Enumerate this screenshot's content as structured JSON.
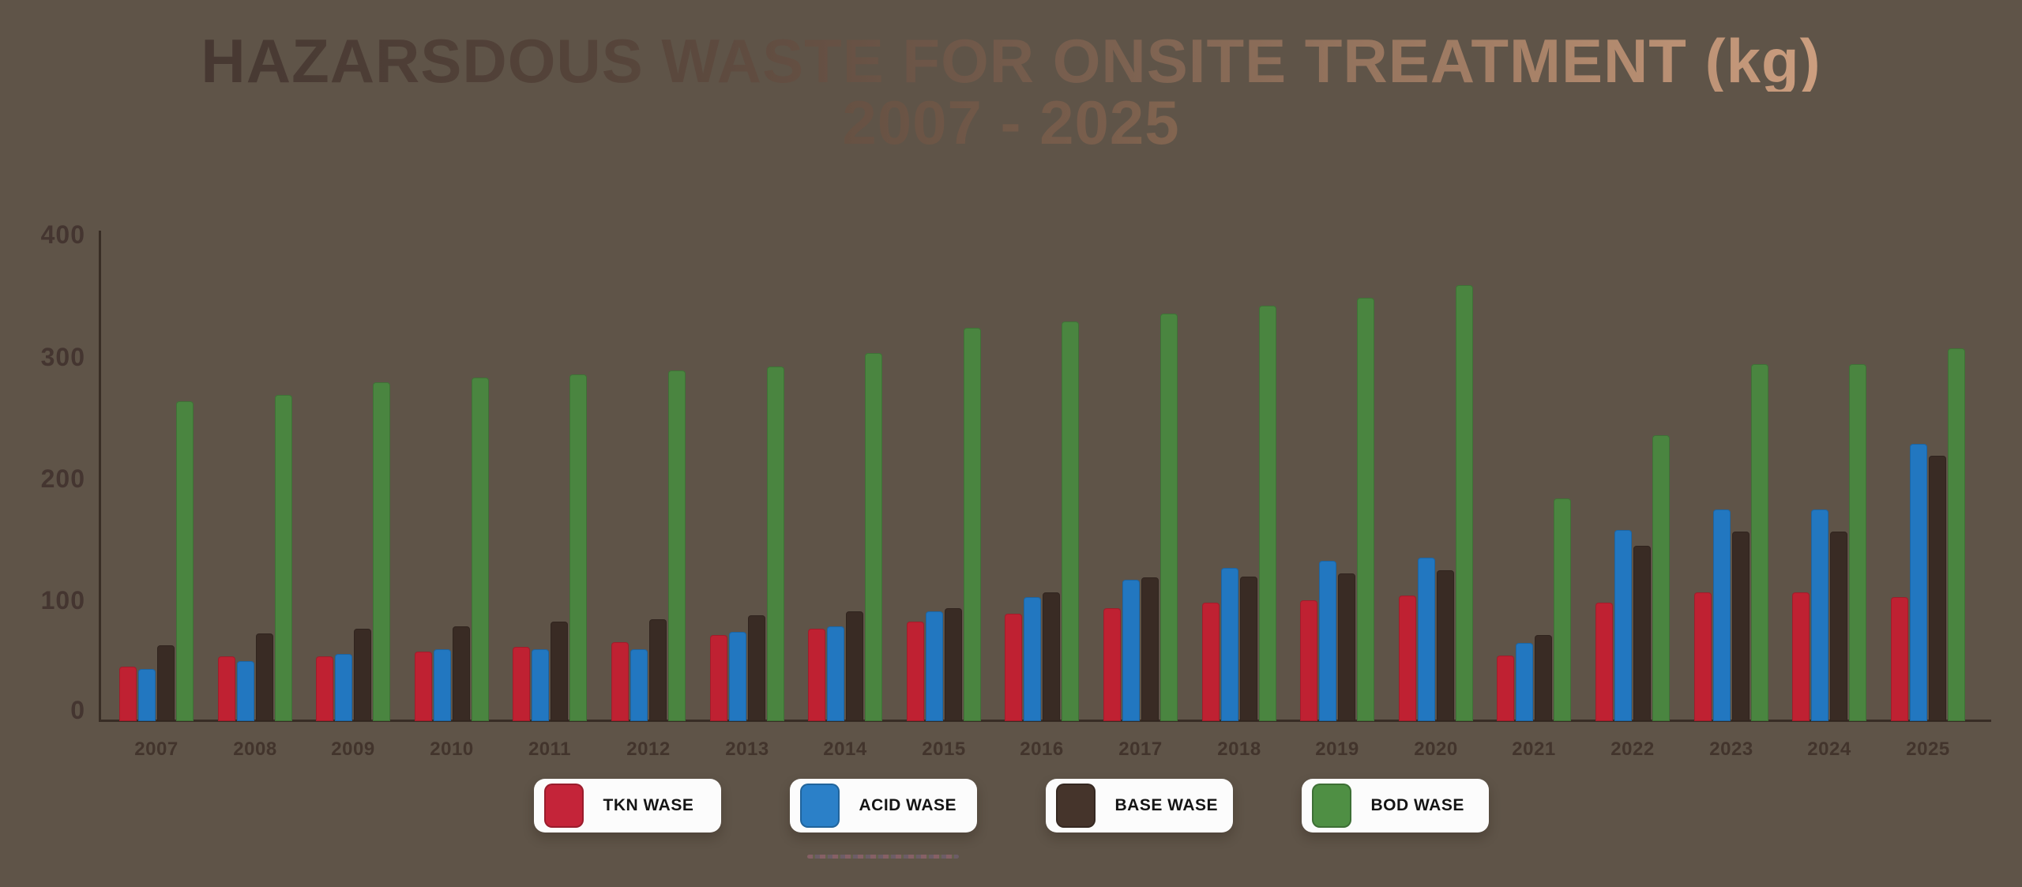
{
  "title": {
    "line1": "HAZARSDOUS WASTE FOR ONSITE TREATMENT (kg)",
    "line2": "2007 - 2025"
  },
  "y_axis": {
    "tick_labels": [
      "0",
      "100",
      "200",
      "300",
      "400"
    ]
  },
  "legend": {
    "items": [
      {
        "label": "TKN WASE",
        "swatch_color": "#c42439",
        "icon": "red-square-swatch"
      },
      {
        "label": "ACID WASE",
        "swatch_color": "#2b80c8",
        "icon": "blue-square-swatch"
      },
      {
        "label": "BASE WASE",
        "swatch_color": "#45342b",
        "icon": "dark-square-swatch"
      },
      {
        "label": "BOD WASE",
        "swatch_color": "#4f8f44",
        "icon": "green-square-swatch"
      }
    ]
  },
  "colors": {
    "background": "#5f5448",
    "axis": "#382d25",
    "axis_text": "#443530",
    "year_text": "#42342c",
    "tkn_bar": "#bf2132",
    "acid_bar": "#2277c0",
    "base_bar": "#392b24",
    "bod_bar": "#4a8540"
  },
  "chart_data": {
    "type": "bar",
    "title": "HAZARSDOUS WASTE FOR ONSITE TREATMENT (kg) 2007 - 2025",
    "xlabel": "",
    "ylabel": "",
    "ylim": [
      0,
      400
    ],
    "y_ticks": [
      0,
      100,
      200,
      300,
      400
    ],
    "grid": false,
    "legend_position": "bottom",
    "categories": [
      "2007",
      "2008",
      "2009",
      "2010",
      "2011",
      "2012",
      "2013",
      "2014",
      "2015",
      "2016",
      "2017",
      "2018",
      "2019",
      "2020",
      "2021",
      "2022",
      "2023",
      "2024",
      "2025"
    ],
    "series": [
      {
        "name": "TKN WASE",
        "color": "#bf2132",
        "values": [
          45,
          53,
          53,
          57,
          61,
          65,
          71,
          76,
          82,
          88,
          93,
          97,
          99,
          103,
          54,
          97,
          106,
          106,
          102
        ]
      },
      {
        "name": "ACID WASE",
        "color": "#2277c0",
        "values": [
          43,
          49,
          55,
          59,
          59,
          59,
          73,
          78,
          90,
          102,
          116,
          126,
          132,
          134,
          64,
          157,
          174,
          174,
          228
        ]
      },
      {
        "name": "BASE WASE",
        "color": "#392b24",
        "values": [
          62,
          72,
          76,
          78,
          82,
          84,
          87,
          90,
          93,
          106,
          118,
          119,
          121,
          124,
          71,
          144,
          156,
          156,
          218
        ]
      },
      {
        "name": "BOD WASE",
        "color": "#4a8540",
        "values": [
          263,
          268,
          278,
          282,
          285,
          288,
          291,
          302,
          323,
          328,
          335,
          341,
          348,
          358,
          183,
          235,
          293,
          293,
          306
        ]
      }
    ]
  }
}
